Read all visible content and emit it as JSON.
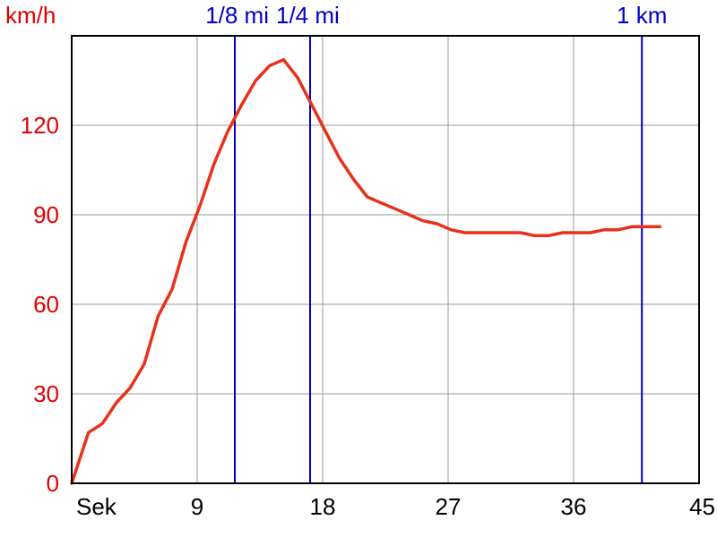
{
  "chart_data": {
    "type": "line",
    "ylabel": "km/h",
    "xlabel": "Sek",
    "xlim": [
      0,
      45
    ],
    "ylim": [
      0,
      150
    ],
    "x_ticks": [
      0,
      9,
      18,
      27,
      36,
      45
    ],
    "x_tick_labels": [
      "Sek",
      "9",
      "18",
      "27",
      "36",
      "45"
    ],
    "y_ticks": [
      0,
      30,
      60,
      90,
      120
    ],
    "y_tick_labels": [
      "0",
      "30",
      "60",
      "90",
      "120"
    ],
    "grid": true,
    "colors": {
      "series": "#e8301a",
      "markers": "#0000cc",
      "y_axis_text": "#e00000"
    },
    "markers": [
      {
        "label": "1/8 mi",
        "x": 11.7
      },
      {
        "label": "1/4 mi",
        "x": 17.1
      },
      {
        "label": "1 km",
        "x": 40.9
      }
    ],
    "series": [
      {
        "x": [
          0,
          1.2,
          2.2,
          3.2,
          4.2,
          5.2,
          6.2,
          7.2,
          8.2,
          9.2,
          10.2,
          11.2,
          12.2,
          13.2,
          14.2,
          15.2,
          16.2,
          17.2,
          18.2,
          19.2,
          20.2,
          21.2,
          22.2,
          23.2,
          24.2,
          25.2,
          26.2,
          27.2,
          28.2,
          29.2,
          30.2,
          31.2,
          32.2,
          33.2,
          34.2,
          35.2,
          36.2,
          37.2,
          38.2,
          39.2,
          40.2,
          41.2,
          42.2
        ],
        "values": [
          0,
          17,
          20,
          27,
          32,
          40,
          56,
          65,
          81,
          93,
          107,
          118,
          127,
          135,
          140,
          142,
          136,
          127,
          118,
          109,
          102,
          96,
          94,
          92,
          90,
          88,
          87,
          85,
          84,
          84,
          84,
          84,
          84,
          83,
          83,
          84,
          84,
          84,
          85,
          85,
          86,
          86,
          86
        ]
      }
    ]
  }
}
